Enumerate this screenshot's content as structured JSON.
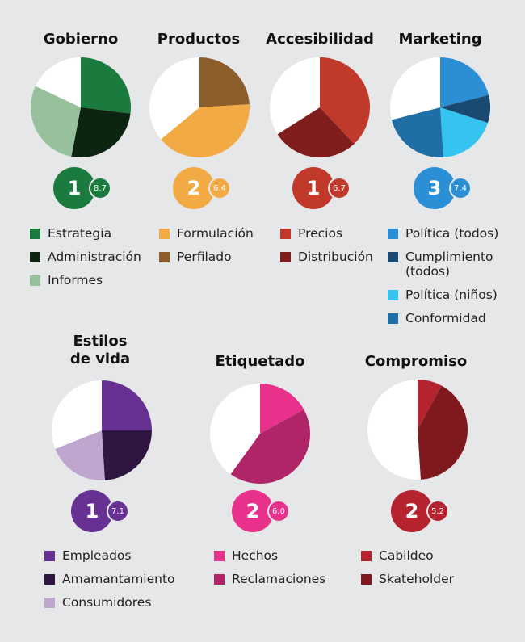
{
  "chart_data": [
    {
      "type": "pie",
      "title": "Gobierno",
      "rank": "1",
      "score": "8.7",
      "color": "#1b7a3e",
      "slices": [
        {
          "label": "Estrategia",
          "value": 0.27,
          "color": "#1b7a3e"
        },
        {
          "label": "Administración",
          "value": 0.26,
          "color": "#0d2410"
        },
        {
          "label": "Informes",
          "value": 0.29,
          "color": "#97c19d"
        },
        {
          "label": "",
          "value": 0.18,
          "color": "#ffffff"
        }
      ]
    },
    {
      "type": "pie",
      "title": "Productos",
      "rank": "2",
      "score": "6.4",
      "color": "#f2aa44",
      "slices": [
        {
          "label": "Perfilado",
          "value": 0.24,
          "color": "#8b5e2b"
        },
        {
          "label": "Formulación",
          "value": 0.4,
          "color": "#f2aa44"
        },
        {
          "label": "",
          "value": 0.36,
          "color": "#ffffff"
        }
      ]
    },
    {
      "type": "pie",
      "title": "Accesibilidad",
      "rank": "1",
      "score": "6.7",
      "color": "#c0392b",
      "slices": [
        {
          "label": "Precios",
          "value": 0.38,
          "color": "#c0392b"
        },
        {
          "label": "Distribución",
          "value": 0.28,
          "color": "#801d1d"
        },
        {
          "label": "",
          "value": 0.34,
          "color": "#ffffff"
        }
      ]
    },
    {
      "type": "pie",
      "title": "Marketing",
      "rank": "3",
      "score": "7.4",
      "color": "#2b8fd6",
      "slices": [
        {
          "label": "Política (todos)",
          "value": 0.21,
          "color": "#2b8fd6"
        },
        {
          "label": "Cumplimiento (todos)",
          "value": 0.09,
          "color": "#1a4a72"
        },
        {
          "label": "Política (niños)",
          "value": 0.19,
          "color": "#35c3ef"
        },
        {
          "label": "Conformidad",
          "value": 0.22,
          "color": "#1f6ea5"
        },
        {
          "label": "",
          "value": 0.29,
          "color": "#ffffff"
        }
      ]
    },
    {
      "type": "pie",
      "title": "Estilos de vida",
      "rank": "1",
      "score": "7.1",
      "color": "#673093",
      "slices": [
        {
          "label": "Empleados",
          "value": 0.25,
          "color": "#673093"
        },
        {
          "label": "Amamantamiento",
          "value": 0.24,
          "color": "#2e1542"
        },
        {
          "label": "Consumidores",
          "value": 0.2,
          "color": "#bfa6cf"
        },
        {
          "label": "",
          "value": 0.31,
          "color": "#ffffff"
        }
      ]
    },
    {
      "type": "pie",
      "title": "Etiquetado",
      "rank": "2",
      "score": "6.0",
      "color": "#e8318a",
      "slices": [
        {
          "label": "Hechos",
          "value": 0.17,
          "color": "#e8318a"
        },
        {
          "label": "Reclamaciones",
          "value": 0.43,
          "color": "#b02468"
        },
        {
          "label": "",
          "value": 0.4,
          "color": "#ffffff"
        }
      ]
    },
    {
      "type": "pie",
      "title": "Compromiso",
      "rank": "2",
      "score": "5.2",
      "color": "#b5242e",
      "slices": [
        {
          "label": "Cabildeo",
          "value": 0.08,
          "color": "#b5242e"
        },
        {
          "label": "Skateholder",
          "value": 0.41,
          "color": "#7e1a1e"
        },
        {
          "label": "",
          "value": 0.51,
          "color": "#ffffff"
        }
      ]
    }
  ],
  "legends": [
    [
      {
        "label": "Estrategia",
        "color": "#1b7a3e"
      },
      {
        "label": "Administración",
        "color": "#0d2410"
      },
      {
        "label": "Informes",
        "color": "#97c19d"
      }
    ],
    [
      {
        "label": "Formulación",
        "color": "#f2aa44"
      },
      {
        "label": "Perfilado",
        "color": "#8b5e2b"
      }
    ],
    [
      {
        "label": "Precios",
        "color": "#c0392b"
      },
      {
        "label": "Distribución",
        "color": "#801d1d"
      }
    ],
    [
      {
        "label": "Política (todos)",
        "color": "#2b8fd6"
      },
      {
        "label": "Cumplimiento\n(todos)",
        "color": "#1a4a72"
      },
      {
        "label": "Política (niños)",
        "color": "#35c3ef"
      },
      {
        "label": "Conformidad",
        "color": "#1f6ea5"
      }
    ],
    [
      {
        "label": "Empleados",
        "color": "#673093"
      },
      {
        "label": "Amamantamiento",
        "color": "#2e1542"
      },
      {
        "label": "Consumidores",
        "color": "#bfa6cf"
      }
    ],
    [
      {
        "label": "Hechos",
        "color": "#e8318a"
      },
      {
        "label": "Reclamaciones",
        "color": "#b02468"
      }
    ],
    [
      {
        "label": "Cabildeo",
        "color": "#b5242e"
      },
      {
        "label": "Skateholder",
        "color": "#7e1a1e"
      }
    ]
  ]
}
